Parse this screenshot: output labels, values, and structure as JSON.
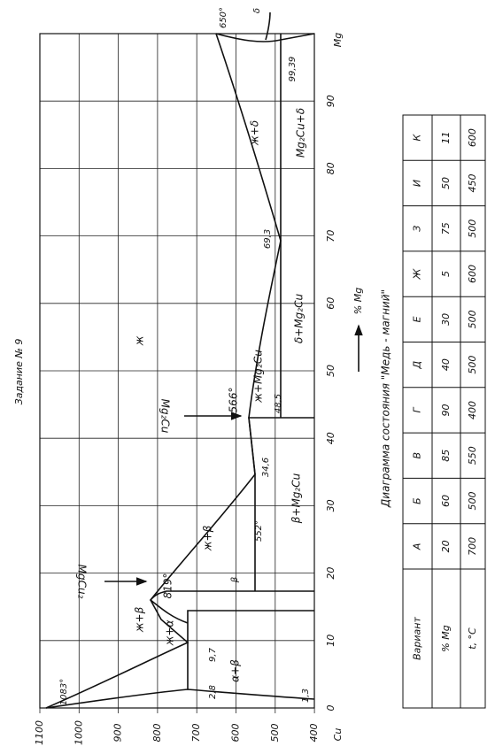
{
  "title": "Задание № 9",
  "caption": "Диаграмма состояния \"Медь - магний\"",
  "diagram": {
    "t_ticks": [
      "1100",
      "1000",
      "900",
      "800",
      "700",
      "600",
      "500",
      "400"
    ],
    "mg_ticks": [
      "0",
      "10",
      "20",
      "30",
      "40",
      "50",
      "60",
      "70",
      "80",
      "90"
    ],
    "left_element": "Cu",
    "right_element": "Mg",
    "axis_label": "% Mg",
    "labels": {
      "t_cu": "1083°",
      "t_mgcu2": "819°",
      "t_eut1": "552°",
      "t_mg2cu": "566°",
      "t_mg": "650°",
      "c_28": "2,8",
      "c_97": "9,7",
      "c_13": "1,3",
      "c_346": "34,6",
      "c_485": "48,5",
      "c_693": "69,3",
      "c_9939": "99,39",
      "l_plus_beta_1": "ж+β",
      "l_plus_alpha": "ж+α",
      "alpha_beta": "α+β",
      "beta": "β",
      "l_plus_beta_2": "ж+β",
      "beta_mg2cu": "β+Mg₂Cu",
      "liquid": "ж",
      "l_mg2cu": "ж+Mg₂Cu",
      "delta_mg2cu": "δ+Mg₂Cu",
      "l_delta": "ж+δ",
      "mg2cu_delta": "Mg₂Cu+δ",
      "delta": "δ",
      "mgcu2_arrow": "MgCu₂",
      "mg2cu_arrow": "Mg₂Cu"
    }
  },
  "table": {
    "header": [
      "Вариант",
      "% Mg",
      "t, °C"
    ],
    "rows": [
      [
        "А",
        "20",
        "700"
      ],
      [
        "Б",
        "60",
        "500"
      ],
      [
        "В",
        "85",
        "550"
      ],
      [
        "Г",
        "90",
        "400"
      ],
      [
        "Д",
        "40",
        "500"
      ],
      [
        "Е",
        "30",
        "500"
      ],
      [
        "Ж",
        "5",
        "600"
      ],
      [
        "З",
        "75",
        "500"
      ],
      [
        "И",
        "50",
        "450"
      ],
      [
        "К",
        "11",
        "600"
      ]
    ]
  }
}
